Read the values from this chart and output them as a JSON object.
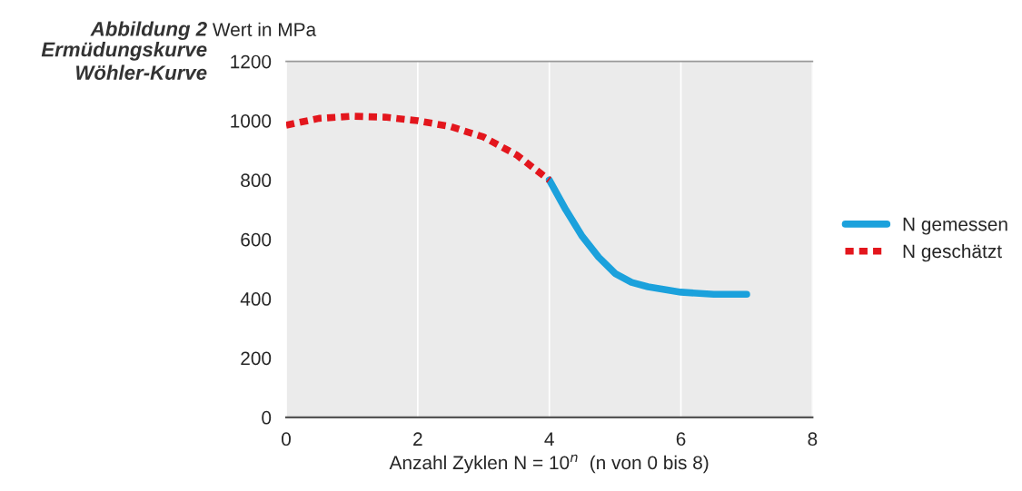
{
  "chart_data": {
    "type": "line",
    "title": "Abbildung 2",
    "subtitle": "Ermüdungskurve\nWöhler-Kurve",
    "ylabel": "Wert in MPa",
    "xlabel": "Anzahl Zyklen N = 10$^{n}$  (n von 0 bis 8)",
    "xlim": [
      0,
      8
    ],
    "xticks": [
      0,
      2,
      4,
      6,
      8
    ],
    "ylim": [
      0,
      1200
    ],
    "yticks": [
      0,
      200,
      400,
      600,
      800,
      1000,
      1200
    ],
    "grid": "x",
    "legend": "right",
    "series": [
      {
        "name": "N gemessen",
        "color": "#1ba1dc",
        "line_style": "solid",
        "x": [
          4,
          4.25,
          4.5,
          4.75,
          5,
          5.25,
          5.5,
          6,
          6.5,
          7
        ],
        "values": [
          800,
          700,
          610,
          540,
          485,
          455,
          440,
          422,
          415,
          415
        ]
      },
      {
        "name": "N geschätzt",
        "color": "#e3161d",
        "line_style": "dashed",
        "x": [
          0,
          0.5,
          1,
          1.5,
          2,
          2.5,
          3,
          3.5,
          4
        ],
        "values": [
          985,
          1008,
          1015,
          1012,
          1000,
          980,
          945,
          885,
          800
        ]
      }
    ]
  }
}
